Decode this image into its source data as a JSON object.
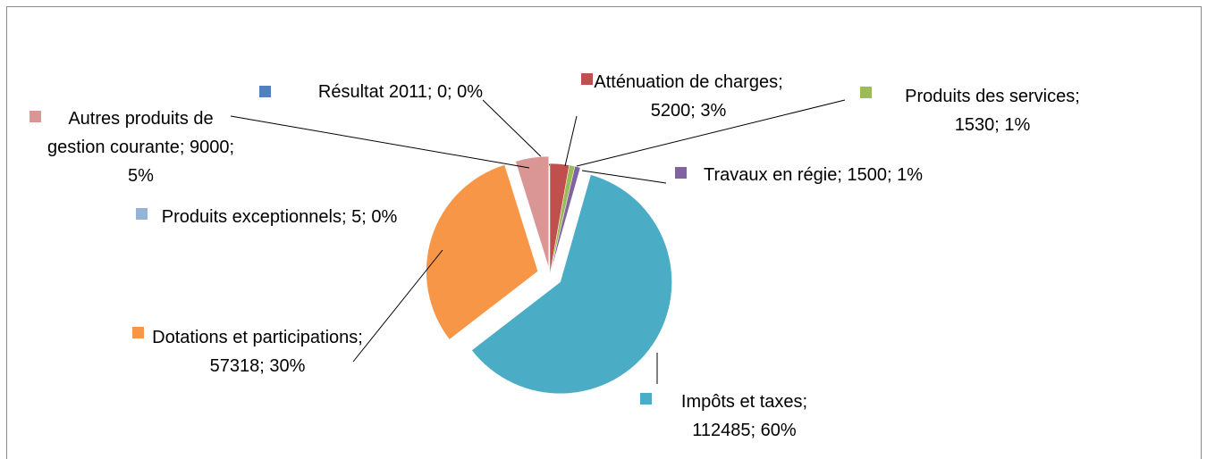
{
  "chart_data": {
    "type": "pie",
    "categories": [
      "Résultat 2011",
      "Atténuation de charges",
      "Produits des services",
      "Travaux en régie",
      "Impôts et taxes",
      "Dotations et participations",
      "Produits exceptionnels",
      "Autres produits de gestion courante"
    ],
    "values": [
      0,
      5200,
      1530,
      1500,
      112485,
      57318,
      5,
      9000
    ],
    "value_labels": [
      "Résultat 2011; 0; 0%",
      "Atténuation de charges; 5200; 3%",
      "Produits des services; 1530; 1%",
      "Travaux en régie; 1500; 1%",
      "Impôts et taxes; 112485; 60%",
      "Dotations et participations; 57318; 30%",
      "Produits exceptionnels; 5; 0%",
      "Autres produits de gestion courante; 9000; 5%"
    ],
    "colors": [
      "#4f81bd",
      "#c0504d",
      "#9bbb59",
      "#8064a2",
      "#4bacc6",
      "#f79646",
      "#95b3d7",
      "#d99694"
    ]
  }
}
